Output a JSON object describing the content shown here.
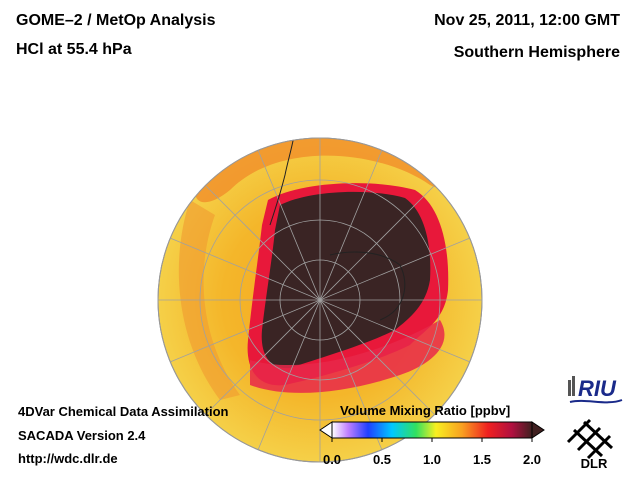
{
  "header": {
    "line1": "GOME–2 / MetOp Analysis",
    "line2": "HCl at 55.4 hPa",
    "date": "Nov 25, 2011, 12:00 GMT",
    "region": "Southern Hemisphere"
  },
  "footer": {
    "line1": "4DVar Chemical Data Assimilation",
    "line2": "SACADA Version 2.4",
    "line3": "http://wdc.dlr.de"
  },
  "colorbar": {
    "title": "Volume Mixing Ratio [ppbv]",
    "ticks": [
      "0.0",
      "0.5",
      "1.0",
      "1.5",
      "2.0"
    ],
    "range": [
      0.0,
      2.0
    ]
  },
  "logos": {
    "riu": "RIU",
    "dlr": "DLR"
  },
  "map": {
    "projection": "orthographic south polar",
    "background_color": "#f4c030",
    "vortex_color": "#3a2424",
    "ring_color": "#e8183a"
  }
}
